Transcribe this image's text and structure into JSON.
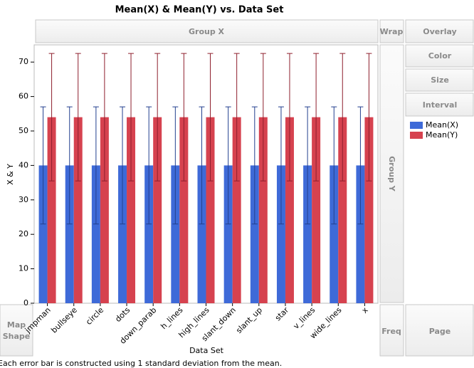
{
  "chart_data": {
    "type": "bar",
    "title": "Mean(X) & Mean(Y) vs. Data Set",
    "x_label": "Data Set",
    "y_label": "X & Y",
    "categories": [
      "jmpman",
      "bullseye",
      "circle",
      "dots",
      "down_parab",
      "h_lines",
      "high_lines",
      "slant_down",
      "slant_up",
      "star",
      "v_lines",
      "wide_lines",
      "x"
    ],
    "series": [
      {
        "name": "Mean(X)",
        "color": "#3e6ad8",
        "error_color": "#23408f",
        "values": [
          40,
          40,
          40,
          40,
          40,
          40,
          40,
          40,
          40,
          40,
          40,
          40,
          40
        ],
        "errors": [
          17,
          17,
          17,
          17,
          17,
          17,
          17,
          17,
          17,
          17,
          17,
          17,
          17
        ]
      },
      {
        "name": "Mean(Y)",
        "color": "#d6424f",
        "error_color": "#8e1f2d",
        "values": [
          54,
          54,
          54,
          54,
          54,
          54,
          54,
          54,
          54,
          54,
          54,
          54,
          54
        ],
        "errors": [
          18.5,
          18.5,
          18.5,
          18.5,
          18.5,
          18.5,
          18.5,
          18.5,
          18.5,
          18.5,
          18.5,
          18.5,
          18.5
        ]
      }
    ],
    "ylim": [
      0,
      75
    ],
    "yticks": [
      0,
      10,
      20,
      30,
      40,
      50,
      60,
      70
    ],
    "footnote": "Each error bar is constructed using 1 standard deviation from the mean."
  },
  "ui": {
    "group_x": "Group X",
    "wrap": "Wrap",
    "overlay": "Overlay",
    "color": "Color",
    "size": "Size",
    "interval": "Interval",
    "group_y": "Group Y",
    "map_shape": [
      "Map",
      "Shape"
    ],
    "freq": "Freq",
    "page": "Page"
  }
}
